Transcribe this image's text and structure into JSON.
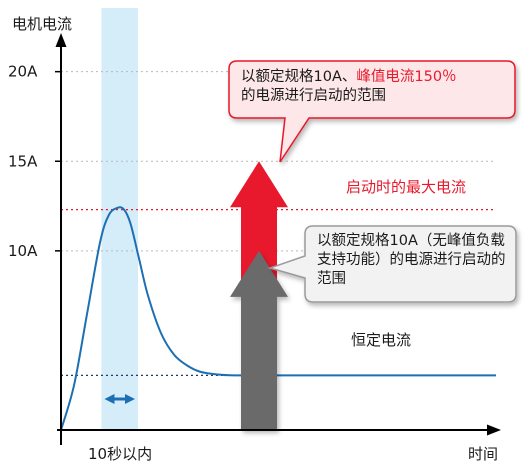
{
  "chart_data": {
    "type": "line",
    "ylabel": "电机电流",
    "xlabel": "时间",
    "y_ticks": [
      {
        "label": "20A",
        "value": 20
      },
      {
        "label": "15A",
        "value": 15
      },
      {
        "label": "10A",
        "value": 10
      }
    ],
    "ylim": [
      0,
      24
    ],
    "xlim": [
      0,
      100
    ],
    "series": [
      {
        "x": [
          0,
          3,
          6,
          9,
          11,
          13,
          14.5,
          16,
          18,
          20,
          23,
          26,
          29,
          32,
          36,
          40,
          46,
          100
        ],
        "y": [
          0,
          2.5,
          6.5,
          10.5,
          12,
          12.4,
          12.3,
          11.5,
          9.5,
          7.5,
          5.4,
          4.2,
          3.6,
          3.25,
          3.1,
          3.05,
          3.05,
          3.05
        ]
      }
    ],
    "reference_lines": [
      {
        "label": "启动时的最大电流",
        "value": 12.3,
        "color": "#e8192c"
      },
      {
        "label": "恒定电流",
        "value": 3.05,
        "color": "#1b3a6e"
      }
    ],
    "shaded_band": {
      "x_start": 9.3,
      "x_end": 17.7,
      "label": "10秒以内"
    },
    "arrows": [
      {
        "name": "red-arrow",
        "value": 15,
        "color": "#e8192c"
      },
      {
        "name": "gray-arrow",
        "value": 10,
        "color": "#6b6b6b"
      }
    ],
    "grid": false,
    "legend": "none"
  },
  "callouts": {
    "a_part1": "以额定规格10A、",
    "a_highlight": "峰值电流150％",
    "a_part2": "的电源进行启动的范围",
    "b_text": "以额定规格10A（无峰值负载支持功能）的电源进行启动的范围"
  },
  "colors": {
    "accent_red": "#e8192c",
    "arrow_gray": "#6b6b6b",
    "curve_blue": "#1d6fb3",
    "band_blue": "#d5ecf9"
  }
}
